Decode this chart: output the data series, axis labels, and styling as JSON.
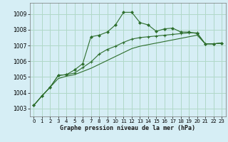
{
  "bg_color": "#d6eef5",
  "grid_color": "#b0d8c8",
  "line_color": "#2d6e2d",
  "marker_color": "#2d6e2d",
  "xlabel": "Graphe pression niveau de la mer (hPa)",
  "ylabel_ticks": [
    1003,
    1004,
    1005,
    1006,
    1007,
    1008,
    1009
  ],
  "xlim": [
    -0.5,
    23.5
  ],
  "ylim": [
    1002.5,
    1009.7
  ],
  "xticks": [
    0,
    1,
    2,
    3,
    4,
    5,
    6,
    7,
    8,
    9,
    10,
    11,
    12,
    13,
    14,
    15,
    16,
    17,
    18,
    19,
    20,
    21,
    22,
    23
  ],
  "series1_x": [
    0,
    1,
    2,
    3,
    4,
    5,
    6,
    7,
    8,
    9,
    10,
    11,
    12,
    13,
    14,
    15,
    16,
    17,
    18,
    19,
    20,
    21,
    22,
    23
  ],
  "series1_y": [
    1003.2,
    1003.8,
    1004.35,
    1005.1,
    1005.15,
    1005.45,
    1005.85,
    1007.55,
    1007.65,
    1007.85,
    1008.3,
    1009.1,
    1009.1,
    1008.45,
    1008.3,
    1007.9,
    1008.05,
    1008.1,
    1007.85,
    1007.85,
    1007.75,
    1007.1,
    1007.1,
    1007.15
  ],
  "series2_x": [
    0,
    1,
    2,
    3,
    4,
    5,
    6,
    7,
    8,
    9,
    10,
    11,
    12,
    13,
    14,
    15,
    16,
    17,
    18,
    19,
    20,
    21,
    22,
    23
  ],
  "series2_y": [
    1003.2,
    1003.8,
    1004.35,
    1005.1,
    1005.15,
    1005.25,
    1005.6,
    1005.95,
    1006.45,
    1006.75,
    1006.95,
    1007.2,
    1007.4,
    1007.5,
    1007.55,
    1007.6,
    1007.65,
    1007.7,
    1007.75,
    1007.8,
    1007.8,
    1007.1,
    1007.1,
    1007.15
  ],
  "series3_x": [
    0,
    1,
    2,
    3,
    4,
    5,
    6,
    7,
    8,
    9,
    10,
    11,
    12,
    13,
    14,
    15,
    16,
    17,
    18,
    19,
    20,
    21,
    22,
    23
  ],
  "series3_y": [
    1003.2,
    1003.8,
    1004.35,
    1004.9,
    1005.05,
    1005.15,
    1005.35,
    1005.55,
    1005.8,
    1006.05,
    1006.3,
    1006.55,
    1006.8,
    1006.95,
    1007.05,
    1007.15,
    1007.25,
    1007.35,
    1007.45,
    1007.55,
    1007.65,
    1007.1,
    1007.1,
    1007.15
  ]
}
